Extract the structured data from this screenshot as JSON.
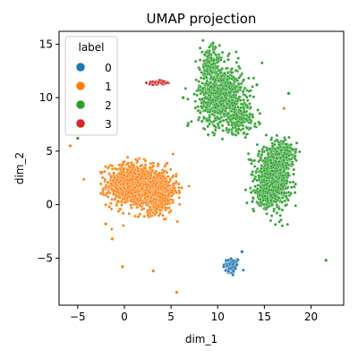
{
  "chart_data": {
    "type": "scatter",
    "title": "UMAP projection",
    "xlabel": "dim_1",
    "ylabel": "dim_2",
    "xlim": [
      -7,
      23.5
    ],
    "ylim": [
      -9.4,
      16.2
    ],
    "xticks": [
      -5,
      0,
      5,
      10,
      15,
      20
    ],
    "yticks": [
      -5,
      0,
      5,
      10,
      15
    ],
    "grid": false,
    "legend": {
      "title": "label",
      "placement": "top-left",
      "entries": [
        "0",
        "1",
        "2",
        "3"
      ]
    },
    "colors": {
      "0": "#1f77b4",
      "1": "#ff7f0e",
      "2": "#2ca02c",
      "3": "#d62728"
    },
    "clusters": [
      {
        "label": "0",
        "cx": 11.5,
        "cy": -5.8,
        "sx": 0.45,
        "sy": 0.45,
        "n": 70
      },
      {
        "label": "1",
        "cx": 0.5,
        "cy": 1.9,
        "sx": 1.2,
        "sy": 1.0,
        "n": 700
      },
      {
        "label": "1",
        "cx": 3.4,
        "cy": 1.3,
        "sx": 1.1,
        "sy": 1.0,
        "n": 700
      },
      {
        "label": "2",
        "cx": 10.4,
        "cy": 10.2,
        "sx": 1.2,
        "sy": 1.4,
        "n": 900
      },
      {
        "label": "2",
        "cx": 9.2,
        "cy": 13.2,
        "sx": 0.5,
        "sy": 0.9,
        "n": 160
      },
      {
        "label": "2",
        "cx": 12.5,
        "cy": 8.0,
        "sx": 0.9,
        "sy": 0.7,
        "n": 160
      },
      {
        "label": "2",
        "cx": 16.0,
        "cy": 2.6,
        "sx": 0.9,
        "sy": 1.3,
        "n": 800
      },
      {
        "label": "2",
        "cx": 17.2,
        "cy": 4.8,
        "sx": 0.6,
        "sy": 0.6,
        "n": 150
      },
      {
        "label": "2",
        "cx": 15.3,
        "cy": 0.9,
        "sx": 0.6,
        "sy": 0.5,
        "n": 220
      },
      {
        "label": "3",
        "cx": 3.6,
        "cy": 11.4,
        "sx": 0.55,
        "sy": 0.1,
        "n": 40
      }
    ],
    "outliers": [
      {
        "label": "2",
        "x": -5.0,
        "y": 6.2
      },
      {
        "label": "2",
        "x": 21.6,
        "y": -5.2
      },
      {
        "label": "2",
        "x": 6.3,
        "y": 10.0
      },
      {
        "label": "2",
        "x": 6.8,
        "y": 7.4
      },
      {
        "label": "2",
        "x": 13.5,
        "y": 4.2
      },
      {
        "label": "2",
        "x": 14.2,
        "y": 11.2
      },
      {
        "label": "2",
        "x": 17.6,
        "y": 10.4
      },
      {
        "label": "1",
        "x": -5.8,
        "y": 5.5
      },
      {
        "label": "1",
        "x": -0.2,
        "y": -5.8
      },
      {
        "label": "1",
        "x": 3.1,
        "y": -6.2
      },
      {
        "label": "1",
        "x": 5.6,
        "y": -8.2
      },
      {
        "label": "1",
        "x": -1.3,
        "y": -3.2
      },
      {
        "label": "1",
        "x": -2.0,
        "y": -1.8
      },
      {
        "label": "1",
        "x": 17.1,
        "y": 9.0
      },
      {
        "label": "3",
        "x": 4.2,
        "y": 11.5
      },
      {
        "label": "0",
        "x": 12.6,
        "y": -4.4
      }
    ]
  }
}
